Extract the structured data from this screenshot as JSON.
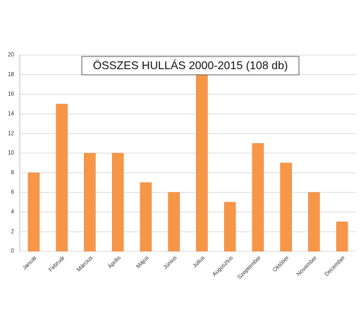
{
  "chart_data": {
    "type": "bar",
    "title": "ÖSSZES HULLÁS 2000-2015  (108 db)",
    "categories": [
      "Január",
      "Február",
      "Március",
      "Április",
      "Május",
      "Június",
      "Július",
      "Augusztus",
      "Szeptember",
      "Október",
      "November",
      "December"
    ],
    "values": [
      8,
      15,
      10,
      10,
      7,
      6,
      18,
      5,
      11,
      9,
      6,
      3
    ],
    "color": "#f79646",
    "ylim": [
      0,
      20
    ],
    "yticks": [
      0,
      2,
      4,
      6,
      8,
      10,
      12,
      14,
      16,
      18,
      20
    ],
    "grid": true
  }
}
